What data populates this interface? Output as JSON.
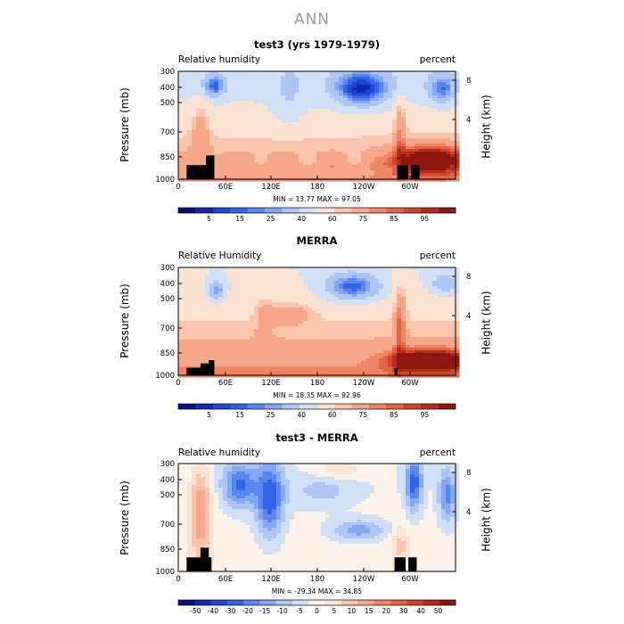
{
  "page_title": "ANN",
  "colors": {
    "rh_levels": [
      "#07107a",
      "#1228b2",
      "#1f45d6",
      "#3364e8",
      "#5a87ee",
      "#84a8f1",
      "#adc6f3",
      "#d2e0f6",
      "#fbe3d4",
      "#f9c6ad",
      "#f6a78a",
      "#ee8566",
      "#e26446",
      "#d0452d",
      "#b72b19",
      "#8e1510"
    ],
    "diff_levels": [
      "#07107a",
      "#1228b2",
      "#1f45d6",
      "#3364e8",
      "#5a87ee",
      "#84a8f1",
      "#adc6f3",
      "#d2e0f6",
      "#fdf2ea",
      "#fbe3d4",
      "#f9c6ad",
      "#f6a78a",
      "#ee8566",
      "#e26446",
      "#d0452d",
      "#b72b19",
      "#8e1510"
    ],
    "terrain": "#000000"
  },
  "chart_data": [
    {
      "type": "heatmap",
      "title": "test3 (yrs 1979-1979)",
      "subtitle_left": "Relative humidity",
      "subtitle_right": "percent",
      "ylabel": "Pressure (mb)",
      "ylabel_right": "Height (km)",
      "x_ticks": [
        "0",
        "60E",
        "120E",
        "180",
        "120W",
        "60W"
      ],
      "y_ticks": [
        "300",
        "400",
        "500",
        "700",
        "850",
        "1000"
      ],
      "y_right_ticks": [
        "8",
        "4"
      ],
      "stats": "MIN =   13.77   MAX =   97.05",
      "colorbar_labels": [
        "5",
        "15",
        "25",
        "40",
        "60",
        "75",
        "85",
        "95"
      ]
    },
    {
      "type": "heatmap",
      "title": "MERRA",
      "subtitle_left": "Relative Humidity",
      "subtitle_right": "percent",
      "ylabel": "Pressure (mb)",
      "ylabel_right": "Height (km)",
      "x_ticks": [
        "0",
        "60E",
        "120E",
        "180",
        "120W",
        "60W"
      ],
      "y_ticks": [
        "300",
        "400",
        "500",
        "700",
        "850",
        "1000"
      ],
      "y_right_ticks": [
        "8",
        "4"
      ],
      "stats": "MIN =   18.35   MAX =   92.96",
      "colorbar_labels": [
        "5",
        "15",
        "25",
        "40",
        "60",
        "75",
        "85",
        "95"
      ]
    },
    {
      "type": "heatmap",
      "title": "test3 - MERRA",
      "subtitle_left": "Relative humidity",
      "subtitle_right": "percent",
      "ylabel": "Pressure (mb)",
      "ylabel_right": "Height (km)",
      "x_ticks": [
        "0",
        "60E",
        "120E",
        "180",
        "120W",
        "60W"
      ],
      "y_ticks": [
        "300",
        "400",
        "500",
        "700",
        "850",
        "1000"
      ],
      "y_right_ticks": [
        "8",
        "4"
      ],
      "stats": "MIN =  -29.34   MAX =   34.85",
      "colorbar_labels": [
        "-50",
        "-40",
        "-30",
        "-20",
        "-15",
        "-10",
        "-5",
        "0",
        "5",
        "10",
        "15",
        "20",
        "30",
        "40",
        "50"
      ]
    }
  ]
}
